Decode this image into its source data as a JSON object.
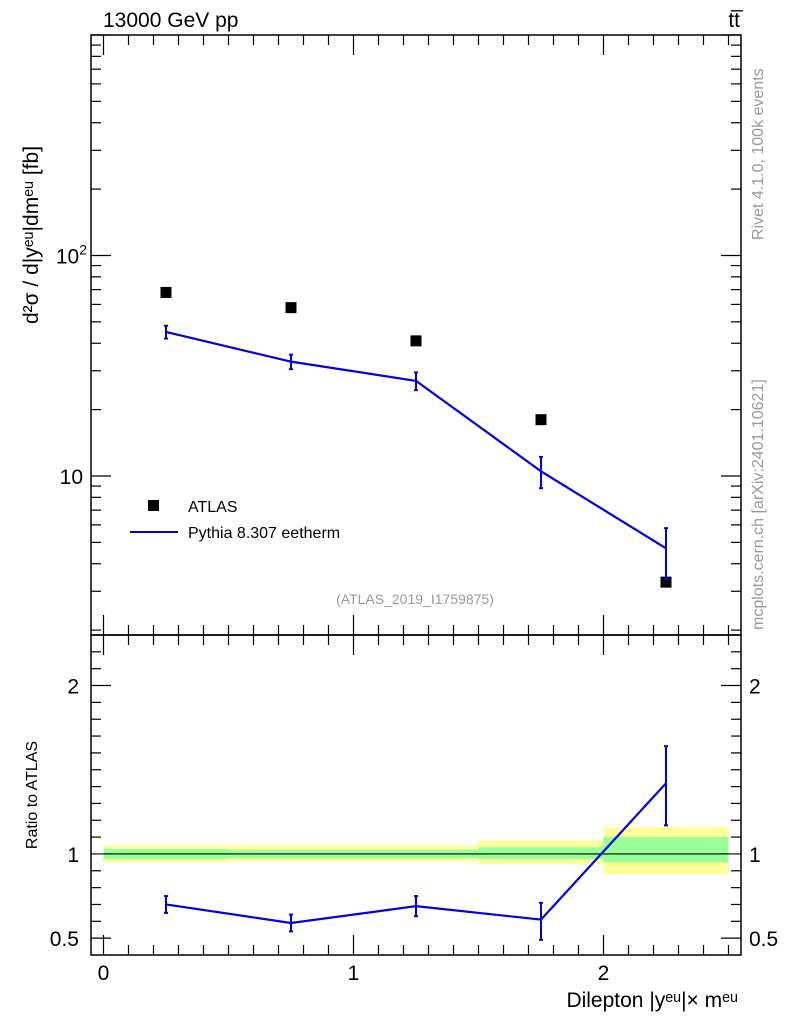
{
  "header": {
    "left": "13000 GeV pp",
    "right": "tt̅"
  },
  "side_labels": {
    "rivet": "Rivet 4.1.0,  100k events",
    "mcplots": "mcplots.cern.ch [arXiv:2401.10621]"
  },
  "analysis_id": "(ATLAS_2019_I1759875)",
  "colors": {
    "data": "#000000",
    "mc": "#0000e0",
    "band_green": "#99ff99",
    "band_yellow": "#ffff99",
    "axis": "#000000",
    "watermark": "#999999"
  },
  "legend": {
    "data_label": "ATLAS",
    "mc_label": "Pythia 8.307 eetherm"
  },
  "chart_data": [
    {
      "type": "scatter",
      "panel": "main",
      "yscale": "log",
      "ylabel": "d²σ / d|yᵉᵘ|dmᵉᵘ [fb]",
      "ylim": [
        1.9,
        1000
      ],
      "xlim": [
        -0.05,
        2.55
      ],
      "y_ticks": [
        {
          "value": 10,
          "label": "10"
        },
        {
          "value": 100,
          "label": "10²"
        }
      ],
      "series": [
        {
          "name": "ATLAS",
          "style": "markers",
          "x": [
            0.25,
            0.75,
            1.25,
            1.75,
            2.25
          ],
          "y": [
            68,
            58,
            41,
            18,
            3.3
          ]
        },
        {
          "name": "Pythia 8.307 eetherm",
          "style": "line",
          "x": [
            0.25,
            0.75,
            1.25,
            1.75,
            2.25
          ],
          "y": [
            45,
            33,
            27,
            10.5,
            4.7
          ],
          "err_low": [
            3,
            2.5,
            2.5,
            1.7,
            1.3
          ],
          "err_high": [
            3,
            2.5,
            2.5,
            1.7,
            1.1
          ]
        }
      ]
    },
    {
      "type": "line",
      "panel": "ratio",
      "ylabel": "Ratio to ATLAS",
      "xlabel": "Dilepton |yᵉᵘ|× mᵉᵘ",
      "ylim": [
        0.4,
        2.3
      ],
      "xlim": [
        -0.05,
        2.55
      ],
      "y_ticks": [
        {
          "value": 0.5,
          "label": "0.5"
        },
        {
          "value": 1,
          "label": "1"
        },
        {
          "value": 2,
          "label": "2"
        }
      ],
      "x_ticks": [
        {
          "value": 0,
          "label": "0"
        },
        {
          "value": 1,
          "label": "1"
        },
        {
          "value": 2,
          "label": "2"
        }
      ],
      "bands": [
        {
          "x0": 0.0,
          "x1": 0.5,
          "green": [
            0.97,
            1.03
          ],
          "yellow": [
            0.95,
            1.05
          ]
        },
        {
          "x0": 0.5,
          "x1": 1.0,
          "green": [
            0.975,
            1.025
          ],
          "yellow": [
            0.955,
            1.05
          ]
        },
        {
          "x0": 1.0,
          "x1": 1.5,
          "green": [
            0.975,
            1.025
          ],
          "yellow": [
            0.955,
            1.05
          ]
        },
        {
          "x0": 1.5,
          "x1": 2.0,
          "green": [
            0.97,
            1.04
          ],
          "yellow": [
            0.94,
            1.08
          ]
        },
        {
          "x0": 2.0,
          "x1": 2.5,
          "green": [
            0.95,
            1.1
          ],
          "yellow": [
            0.88,
            1.16
          ]
        }
      ],
      "series": [
        {
          "name": "Pythia 8.307 eetherm / ATLAS",
          "x": [
            0.25,
            0.75,
            1.25,
            1.75,
            2.25
          ],
          "y": [
            0.7,
            0.59,
            0.69,
            0.61,
            1.42
          ],
          "err_low": [
            0.05,
            0.05,
            0.06,
            0.12,
            0.25
          ],
          "err_high": [
            0.05,
            0.05,
            0.06,
            0.1,
            0.22
          ]
        }
      ]
    }
  ]
}
